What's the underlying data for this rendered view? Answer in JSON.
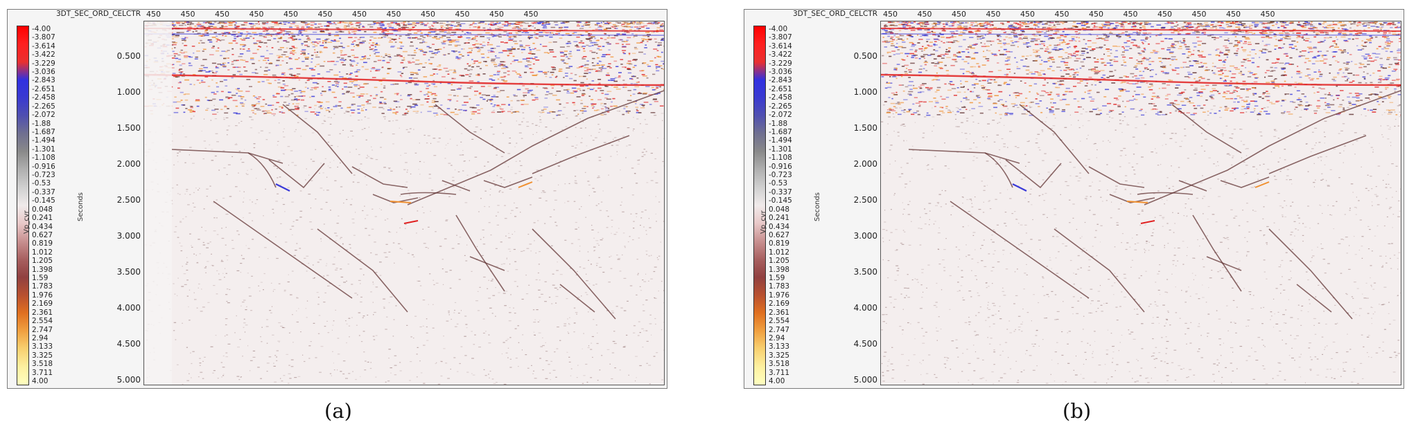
{
  "panels": [
    {
      "id": "a",
      "caption": "(a)",
      "xaxis_title": "3DT_SEC_ORD_CELCTR",
      "xticks": [
        "450",
        "450",
        "450",
        "450",
        "450",
        "450",
        "450",
        "450",
        "450",
        "450",
        "450",
        "450"
      ],
      "colorbar_title": "Vp_cvr",
      "colorbar_labels": [
        "-4.00",
        "-3.807",
        "-3.614",
        "-3.422",
        "-3.229",
        "-3.036",
        "-2.843",
        "-2.651",
        "-2.458",
        "-2.265",
        "-2.072",
        "-1.88",
        "-1.687",
        "-1.494",
        "-1.301",
        "-1.108",
        "-0.916",
        "-0.723",
        "-0.53",
        "-0.337",
        "-0.145",
        "0.048",
        "0.241",
        "0.434",
        "0.627",
        "0.819",
        "1.012",
        "1.205",
        "1.398",
        "1.59",
        "1.783",
        "1.976",
        "2.169",
        "2.361",
        "2.554",
        "2.747",
        "2.94",
        "3.133",
        "3.325",
        "3.518",
        "3.711",
        "4.00"
      ],
      "yaxis_title": "Seconds",
      "yticks": [
        "0.500",
        "1.000",
        "1.500",
        "2.000",
        "2.500",
        "3.000",
        "3.500",
        "4.000",
        "4.500",
        "5.000"
      ],
      "has_blank_strip": true
    },
    {
      "id": "b",
      "caption": "(b)",
      "xaxis_title": "3DT_SEC_ORD_CELCTR",
      "xticks": [
        "450",
        "450",
        "450",
        "450",
        "450",
        "450",
        "450",
        "450",
        "450",
        "450",
        "450",
        "450"
      ],
      "colorbar_title": "Vp_cvr",
      "colorbar_labels": [
        "-4.00",
        "-3.807",
        "-3.614",
        "-3.422",
        "-3.229",
        "-3.036",
        "-2.843",
        "-2.651",
        "-2.458",
        "-2.265",
        "-2.072",
        "-1.88",
        "-1.687",
        "-1.494",
        "-1.301",
        "-1.108",
        "-0.916",
        "-0.723",
        "-0.53",
        "-0.337",
        "-0.145",
        "0.048",
        "0.241",
        "0.434",
        "0.627",
        "0.819",
        "1.012",
        "1.205",
        "1.398",
        "1.59",
        "1.783",
        "1.976",
        "2.169",
        "2.361",
        "2.554",
        "2.747",
        "2.94",
        "3.133",
        "3.325",
        "3.518",
        "3.711",
        "4.00"
      ],
      "yaxis_title": "Seconds",
      "yticks": [
        "0.500",
        "1.000",
        "1.500",
        "2.000",
        "2.500",
        "3.000",
        "3.500",
        "4.000",
        "4.500",
        "5.000"
      ],
      "has_blank_strip": false
    }
  ],
  "colorbar_gradient": [
    "#ff0000",
    "#ff2020",
    "#e83030",
    "#3030e0",
    "#3a3ad0",
    "#5050b0",
    "#707090",
    "#8a8a8a",
    "#b0b0b0",
    "#d0d0d0",
    "#f0eaea",
    "#e8c8c8",
    "#c89090",
    "#a86060",
    "#904040",
    "#b85030",
    "#e07020",
    "#f0a040",
    "#f8d070",
    "#fdf0a0",
    "#ffffc0"
  ],
  "colors": {
    "background": "#f4eeee",
    "trace_dark": "#5a2a2a",
    "trace_red": "#e02020",
    "trace_blue": "#3a3ad8",
    "trace_orange": "#f09030"
  }
}
